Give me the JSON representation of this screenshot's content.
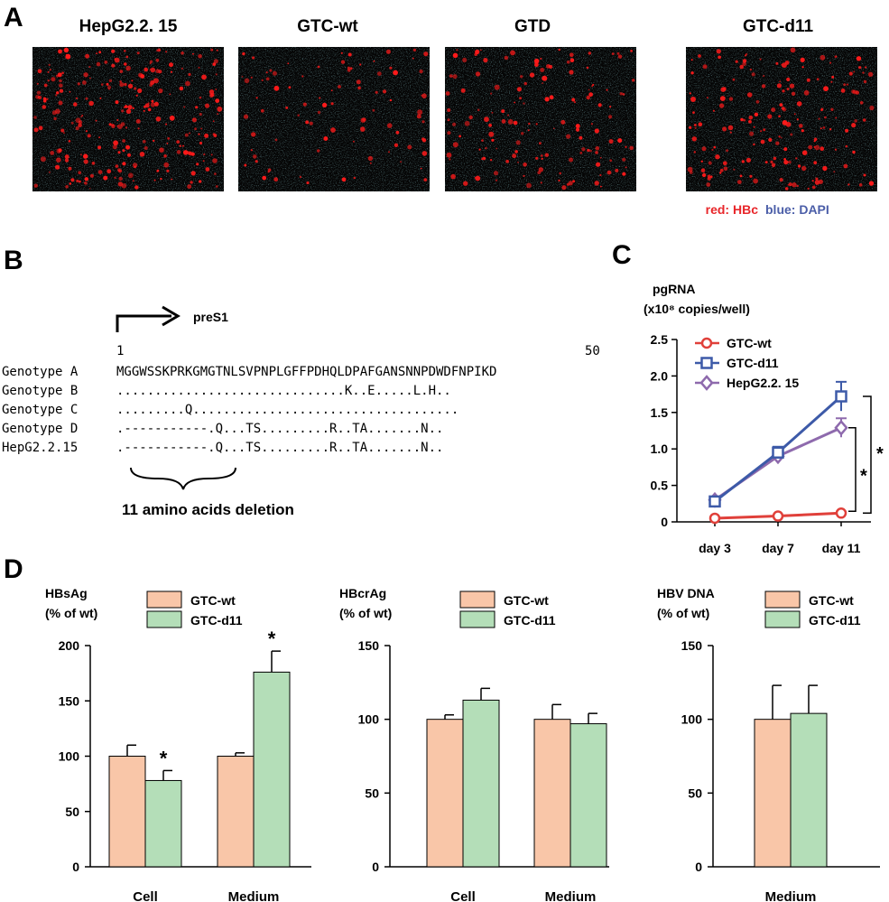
{
  "panels": {
    "a": "A",
    "b": "B",
    "c": "C",
    "d": "D"
  },
  "panel_a": {
    "titles": [
      "HepG2.2. 15",
      "GTC-wt",
      "GTD",
      "GTC-d11"
    ],
    "legend_red": "red: HBc",
    "legend_blue": "blue: DAPI",
    "colors": {
      "red": "#e8262a",
      "blue": "#4b5ea8"
    }
  },
  "panel_b": {
    "feature_label": "preS1",
    "pos_start": "1",
    "pos_end": "50",
    "rows": [
      {
        "name": "Genotype A",
        "seq": "MGGWSSKPRKGMGTNLSVPNPLGFFPDHQLDPAFGANSNNPDWDFNPIKD"
      },
      {
        "name": "Genotype B",
        "seq": "..............................K..E.....L.H.."
      },
      {
        "name": "Genotype C",
        "seq": ".........Q..................................."
      },
      {
        "name": "Genotype D",
        "seq": ".-----------.Q...TS.........R..TA.......N.."
      },
      {
        "name": "HepG2.2.15",
        "seq": ".-----------.Q...TS.........R..TA.......N.."
      }
    ],
    "deletion_label": "11 amino acids deletion"
  },
  "chart_data": [
    {
      "type": "line",
      "title": "pgRNA",
      "ylabel": "(x10⁸ copies/well)",
      "categories": [
        "day 3",
        "day 7",
        "day 11"
      ],
      "ylim": [
        0,
        2.5
      ],
      "yticks": [
        "0",
        "0.5",
        "1.0",
        "1.5",
        "2.0",
        "2.5"
      ],
      "series": [
        {
          "name": "GTC-wt",
          "color": "#e0403a",
          "marker": "circle",
          "values": [
            0.05,
            0.08,
            0.12
          ],
          "errors": [
            0.01,
            0.01,
            0.02
          ]
        },
        {
          "name": "GTC-d11",
          "color": "#3d5aa8",
          "marker": "square",
          "values": [
            0.28,
            0.95,
            1.72
          ],
          "errors": [
            0.03,
            0.08,
            0.2
          ]
        },
        {
          "name": "HepG2.2. 15",
          "color": "#8e6aad",
          "marker": "diamond",
          "values": [
            0.3,
            0.9,
            1.29
          ],
          "errors": [
            0.03,
            0.05,
            0.13
          ]
        }
      ],
      "annotations": [
        "*",
        "*"
      ]
    },
    {
      "type": "bar",
      "title": "HBsAg",
      "ylabel": "(% of wt)",
      "categories": [
        "Cell",
        "Medium"
      ],
      "ylim": [
        0,
        200
      ],
      "yticks": [
        "0",
        "50",
        "100",
        "150",
        "200"
      ],
      "series": [
        {
          "name": "GTC-wt",
          "color": "#f9c6a8",
          "values": [
            100,
            100
          ],
          "errors": [
            10,
            3
          ]
        },
        {
          "name": "GTC-d11",
          "color": "#b4deb8",
          "values": [
            78,
            176
          ],
          "errors": [
            9,
            19
          ]
        }
      ],
      "significance": [
        "*",
        "*"
      ]
    },
    {
      "type": "bar",
      "title": "HBcrAg",
      "ylabel": "(% of wt)",
      "categories": [
        "Cell",
        "Medium"
      ],
      "ylim": [
        0,
        150
      ],
      "yticks": [
        "0",
        "50",
        "100",
        "150"
      ],
      "series": [
        {
          "name": "GTC-wt",
          "color": "#f9c6a8",
          "values": [
            100,
            100
          ],
          "errors": [
            3,
            10
          ]
        },
        {
          "name": "GTC-d11",
          "color": "#b4deb8",
          "values": [
            113,
            97
          ],
          "errors": [
            8,
            7
          ]
        }
      ]
    },
    {
      "type": "bar",
      "title": "HBV DNA",
      "ylabel": "(% of wt)",
      "categories": [
        "Medium"
      ],
      "ylim": [
        0,
        150
      ],
      "yticks": [
        "0",
        "50",
        "100",
        "150"
      ],
      "series": [
        {
          "name": "GTC-wt",
          "color": "#f9c6a8",
          "values": [
            100
          ],
          "errors": [
            23
          ]
        },
        {
          "name": "GTC-d11",
          "color": "#b4deb8",
          "values": [
            104
          ],
          "errors": [
            19
          ]
        }
      ]
    }
  ]
}
